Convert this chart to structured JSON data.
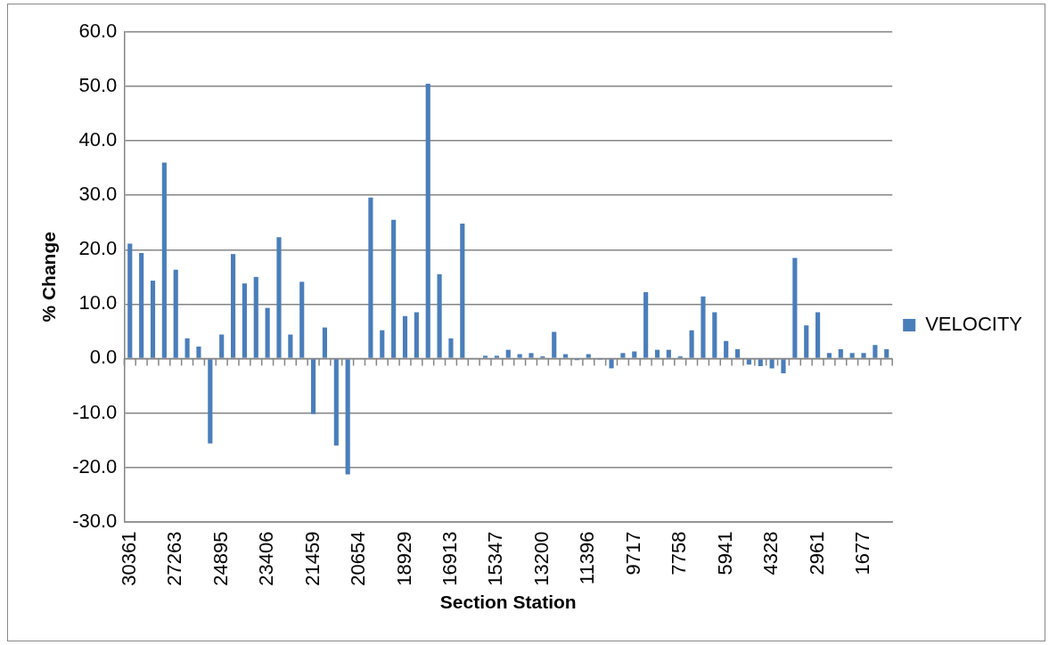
{
  "chart_data": {
    "type": "bar",
    "xlabel": "Section Station",
    "ylabel": "% Change",
    "categories": [
      "30361",
      null,
      null,
      null,
      "27263",
      null,
      null,
      null,
      "24895",
      null,
      null,
      null,
      "23406",
      null,
      null,
      null,
      "21459",
      null,
      null,
      null,
      "20654",
      null,
      null,
      null,
      "18929",
      null,
      null,
      null,
      "16913",
      null,
      null,
      null,
      "15347",
      null,
      null,
      null,
      "13200",
      null,
      null,
      null,
      "11396",
      null,
      null,
      null,
      "9717",
      null,
      null,
      null,
      "7758",
      null,
      null,
      null,
      "5941",
      null,
      null,
      null,
      "4328",
      null,
      null,
      null,
      "2961",
      null,
      null,
      null,
      "1677",
      null,
      null
    ],
    "series": [
      {
        "name": "VELOCITY",
        "color": "#4a7ebb",
        "values": [
          21.1,
          19.4,
          14.3,
          36.0,
          16.3,
          3.7,
          2.2,
          -15.6,
          4.4,
          19.2,
          13.8,
          15.0,
          9.3,
          22.3,
          4.4,
          14.1,
          -10.2,
          5.7,
          -16.0,
          -21.3,
          0,
          29.6,
          5.2,
          25.5,
          7.8,
          8.5,
          50.5,
          15.5,
          3.7,
          24.8,
          0,
          0.5,
          0.5,
          1.6,
          0.8,
          1.0,
          0.4,
          4.9,
          0.8,
          -0.3,
          0.8,
          -0.2,
          -1.8,
          1.0,
          1.3,
          12.2,
          1.6,
          1.6,
          0.4,
          5.2,
          11.4,
          8.5,
          3.2,
          1.7,
          -1.1,
          -1.4,
          -1.8,
          -2.7,
          18.5,
          6.1,
          8.5,
          1.0,
          1.7,
          1.0,
          1.0,
          2.5,
          1.7
        ]
      }
    ],
    "ylim": [
      -30,
      60
    ],
    "yticks": [
      {
        "value": -30,
        "label": "-30.0"
      },
      {
        "value": -20,
        "label": "-20.0"
      },
      {
        "value": -10,
        "label": "-10.0"
      },
      {
        "value": 0,
        "label": "0.0"
      },
      {
        "value": 10,
        "label": "10.0"
      },
      {
        "value": 20,
        "label": "20.0"
      },
      {
        "value": 30,
        "label": "30.0"
      },
      {
        "value": 40,
        "label": "40.0"
      },
      {
        "value": 50,
        "label": "50.0"
      },
      {
        "value": 60,
        "label": "60.0"
      }
    ],
    "grid": "y",
    "legend": "right"
  }
}
